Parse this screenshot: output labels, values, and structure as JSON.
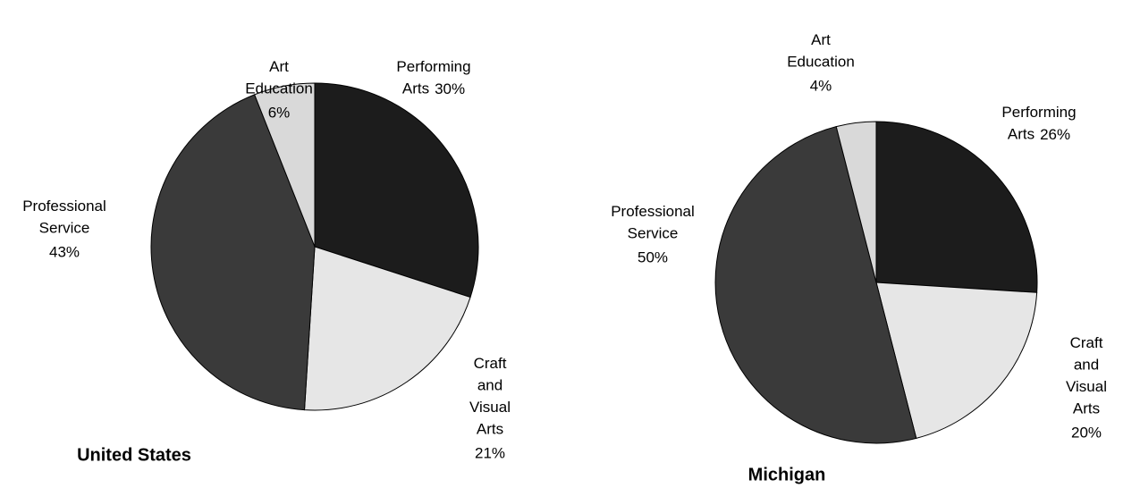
{
  "chart_data": [
    {
      "type": "pie",
      "title": "United States",
      "categories": [
        "Performing Arts",
        "Craft and Visual Arts",
        "Professional Service",
        "Art Education"
      ],
      "values": [
        30,
        21,
        43,
        6
      ],
      "value_labels": [
        "30%",
        "21%",
        "43%",
        "6%"
      ],
      "colors": [
        "#1c1c1c",
        "#e6e6e6",
        "#3a3a3a",
        "#d9d9d9"
      ]
    },
    {
      "type": "pie",
      "title": "Michigan",
      "categories": [
        "Performing Arts",
        "Craft and Visual Arts",
        "Professional Service",
        "Art Education"
      ],
      "values": [
        26,
        20,
        50,
        4
      ],
      "value_labels": [
        "26%",
        "20%",
        "50%",
        "4%"
      ],
      "colors": [
        "#1c1c1c",
        "#e6e6e6",
        "#3a3a3a",
        "#d9d9d9"
      ]
    }
  ]
}
